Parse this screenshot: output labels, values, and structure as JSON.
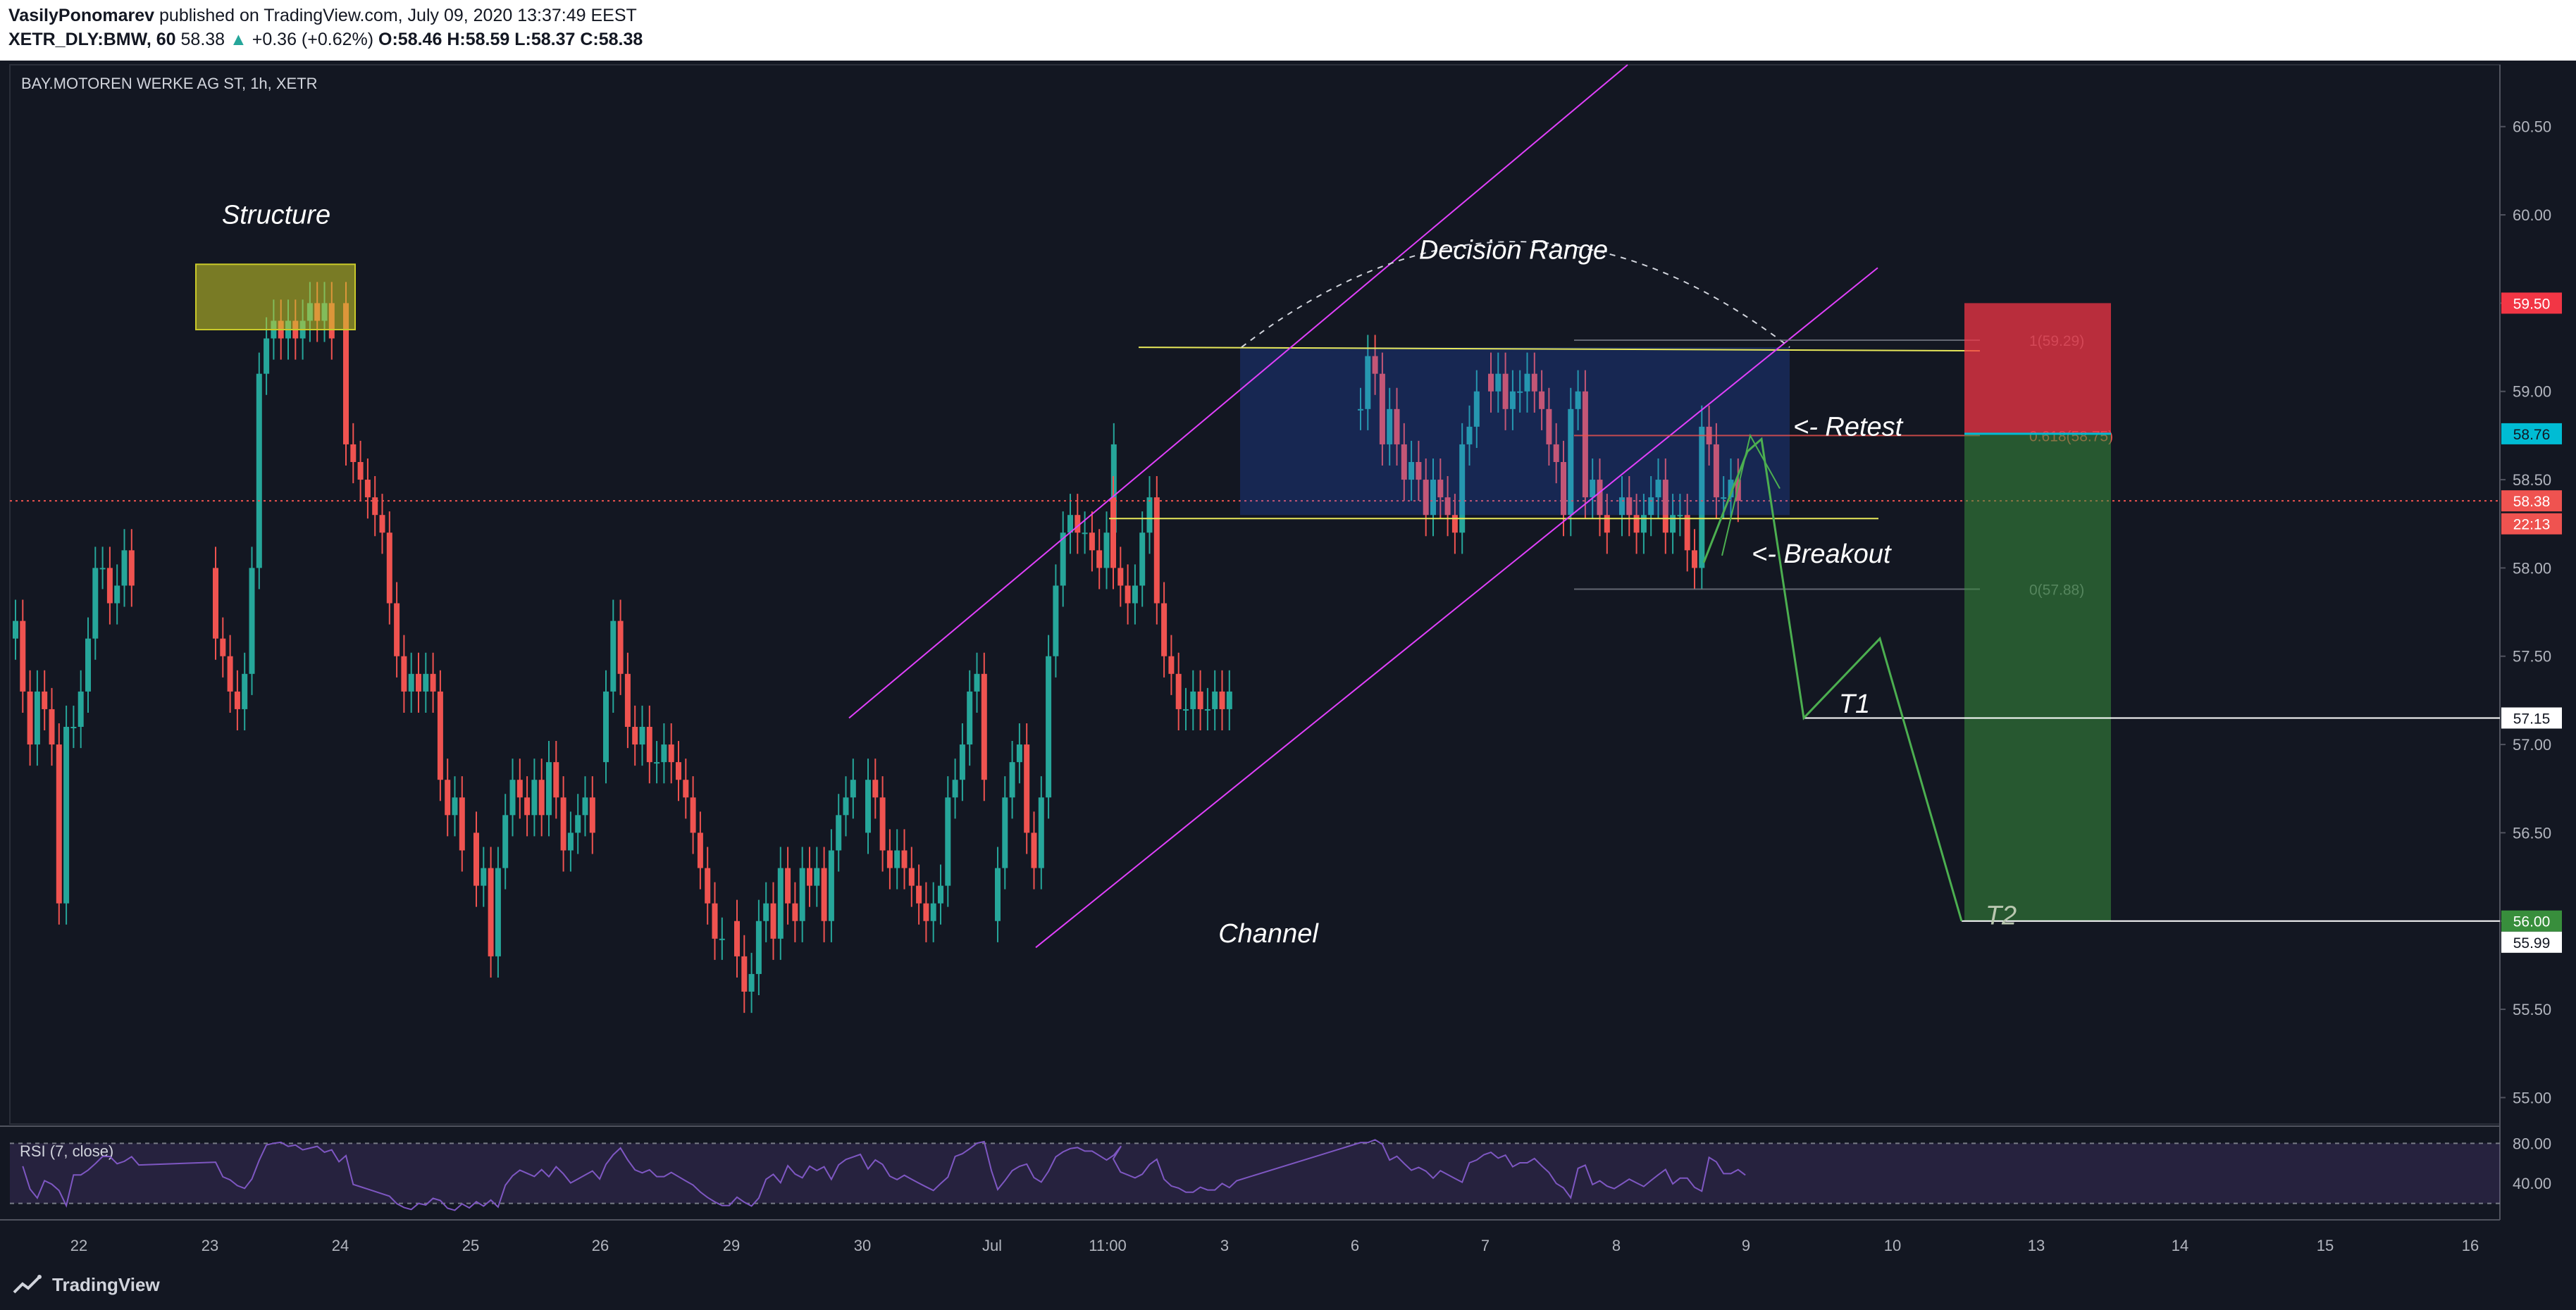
{
  "header": {
    "author": "VasilyPonomarev",
    "published_text": "published on TradingView.com, July 09, 2020 13:37:49 EEST",
    "symbol": "XETR_DLY:BMW, 60",
    "last": "58.38",
    "change": "+0.36 (+0.62%)",
    "ohlc_open": "O:58.46",
    "ohlc_high": "H:58.59",
    "ohlc_low": "L:58.37",
    "ohlc_close": "C:58.38"
  },
  "chart_data": {
    "type": "candlestick",
    "title": "BAY.MOTOREN WERKE AG ST, 1h, XETR",
    "ylim": [
      54.85,
      60.85
    ],
    "y_ticks": [
      "60.50",
      "60.00",
      "59.50",
      "59.00",
      "58.50",
      "58.00",
      "57.50",
      "57.00",
      "56.50",
      "56.00",
      "55.50",
      "55.00"
    ],
    "x_ticks": [
      "22",
      "23",
      "24",
      "25",
      "26",
      "29",
      "30",
      "Jul",
      "11:00",
      "3",
      "6",
      "7",
      "8",
      "9",
      "10",
      "13",
      "14",
      "15",
      "16"
    ],
    "candles": [
      {
        "day": "22",
        "o": [
          57.6,
          57.7,
          57.3,
          57.0,
          57.3,
          57.2,
          57.0,
          56.1,
          57.1,
          57.1,
          57.3,
          57.6,
          58.0,
          58.0,
          57.8,
          57.9,
          58.1,
          57.9
        ]
      },
      {
        "day": "23",
        "o": [
          58.0,
          57.6,
          57.5,
          57.3,
          57.2,
          57.4,
          58.0,
          59.1,
          59.3,
          59.4,
          59.3,
          59.4,
          59.3,
          59.4,
          59.5,
          59.4,
          59.5,
          59.3
        ]
      },
      {
        "day": "24",
        "o": [
          59.5,
          58.7,
          58.6,
          58.5,
          58.4,
          58.3,
          58.2,
          57.8,
          57.5,
          57.3,
          57.4,
          57.3,
          57.4,
          57.3,
          56.8,
          56.6,
          56.7,
          56.4
        ]
      },
      {
        "day": "25",
        "o": [
          56.5,
          56.2,
          56.3,
          55.8,
          56.3,
          56.6,
          56.8,
          56.7,
          56.6,
          56.8,
          56.6,
          56.9,
          56.7,
          56.4,
          56.5,
          56.6,
          56.7,
          56.5
        ]
      },
      {
        "day": "26",
        "o": [
          56.9,
          57.3,
          57.7,
          57.4,
          57.1,
          57.0,
          57.1,
          56.9,
          56.9,
          57.0,
          56.9,
          56.8,
          56.7,
          56.5,
          56.3,
          56.1,
          55.9,
          55.9
        ]
      },
      {
        "day": "29",
        "o": [
          56.0,
          55.8,
          55.6,
          55.7,
          56.0,
          56.1,
          55.9,
          56.3,
          56.1,
          56.0,
          56.3,
          56.2,
          56.3,
          56.0,
          56.4,
          56.6,
          56.7,
          56.8
        ]
      },
      {
        "day": "30",
        "o": [
          56.5,
          56.8,
          56.7,
          56.4,
          56.3,
          56.4,
          56.3,
          56.2,
          56.1,
          56.0,
          56.1,
          56.2,
          56.7,
          56.8,
          57.0,
          57.3,
          57.4,
          56.8
        ]
      },
      {
        "day": "Jul",
        "o": [
          56.0,
          56.3,
          56.7,
          56.9,
          57.0,
          56.5,
          56.3,
          56.7,
          57.5,
          57.9,
          58.2,
          58.3,
          58.2,
          58.2,
          58.1,
          58.0,
          58.2,
          58.7
        ]
      },
      {
        "day": "11:00",
        "o": [
          58.4,
          58.0,
          57.9,
          57.8,
          57.9,
          58.2,
          58.4,
          57.8,
          57.5,
          57.4,
          57.2,
          57.2,
          57.3,
          57.2,
          57.2,
          57.3,
          57.2,
          57.3
        ]
      },
      {
        "day": "6",
        "o": [
          58.9,
          58.9,
          59.2,
          59.1,
          58.7,
          58.9,
          58.7,
          58.5,
          58.6,
          58.5,
          58.3,
          58.5,
          58.4,
          58.3,
          58.2,
          58.7,
          58.8,
          59.0
        ]
      },
      {
        "day": "7",
        "o": [
          59.1,
          59.0,
          59.1,
          58.9,
          59.0,
          59.0,
          59.1,
          59.0,
          58.9,
          58.7,
          58.6,
          58.3,
          58.9,
          59.0,
          58.4,
          58.5,
          58.3,
          58.2
        ]
      },
      {
        "day": "8",
        "o": [
          58.3,
          58.4,
          58.3,
          58.2,
          58.3,
          58.4,
          58.5,
          58.2,
          58.3,
          58.3,
          58.1,
          58.0,
          58.8,
          58.7,
          58.4,
          58.4,
          58.5,
          58.38
        ]
      }
    ],
    "sample_candles_note": "",
    "price_line": 58.38,
    "patterns": [
      {
        "name": "Structure"
      },
      {
        "name": "Decision Range"
      },
      {
        "name": "Channel"
      },
      {
        "name": "<- Retest"
      },
      {
        "name": "<- Breakout"
      },
      {
        "name": "T1"
      },
      {
        "name": "T2"
      }
    ],
    "fib_levels": [
      {
        "label": "1(59.29)",
        "value": 59.29
      },
      {
        "label": "0.618(58.75)",
        "value": 58.75
      },
      {
        "label": "0(57.88)",
        "value": 57.88
      }
    ],
    "price_tags": [
      {
        "label": "59.50",
        "value": 59.5,
        "color": "#f23645"
      },
      {
        "label": "58.76",
        "value": 58.76,
        "color": "#00bcd4"
      },
      {
        "label": "58.38",
        "value": 58.38,
        "color": "#ef5350"
      },
      {
        "label": "22:13",
        "value": 58.25,
        "color": "#ef5350"
      },
      {
        "label": "57.15",
        "value": 57.15,
        "color": "#ffffff"
      },
      {
        "label": "56.00",
        "value": 56.0,
        "color": "#388e3c"
      },
      {
        "label": "55.99",
        "value": 55.88,
        "color": "#ffffff"
      }
    ],
    "position": {
      "stop": 59.5,
      "entry": 58.76,
      "target": 56.0
    },
    "rsi": {
      "label": "RSI (7, close)",
      "ticks": [
        "80.00",
        "40.00"
      ],
      "ylim": [
        5,
        95
      ],
      "bands": [
        80,
        20
      ]
    }
  },
  "brand": {
    "name": "TradingView"
  }
}
